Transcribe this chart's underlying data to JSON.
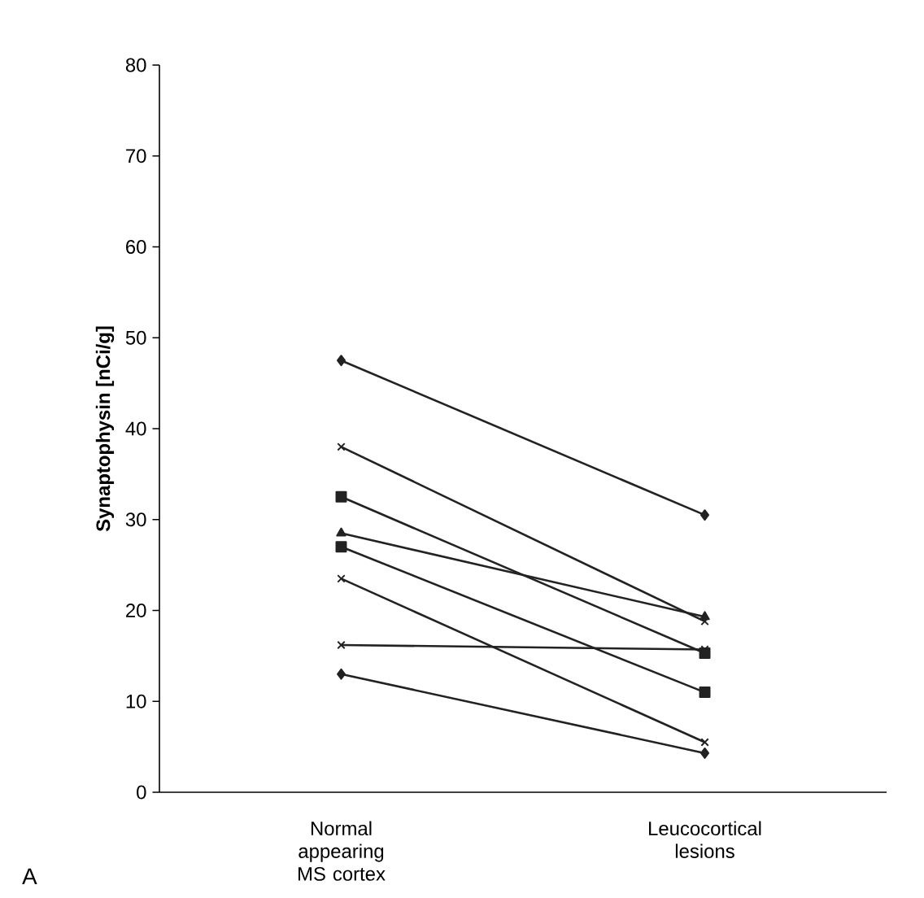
{
  "chart_data": {
    "type": "line",
    "ylabel": "Synaptophysin [nCi/g]",
    "categories": [
      "Normal appearing MS cortex",
      "Leucocortical lesions"
    ],
    "ylim": [
      0,
      80
    ],
    "yticks": [
      0,
      10,
      20,
      30,
      40,
      50,
      60,
      70,
      80
    ],
    "grid": false,
    "line_style": "solid",
    "series": [
      {
        "color": "#222222",
        "marker": "diamond",
        "values": [
          47.5,
          30.5
        ]
      },
      {
        "color": "#222222",
        "marker": "cross",
        "values": [
          38,
          18.8
        ]
      },
      {
        "color": "#222222",
        "marker": "square",
        "values": [
          32.5,
          15.3
        ]
      },
      {
        "color": "#222222",
        "marker": "triangle",
        "values": [
          28.5,
          19.3
        ]
      },
      {
        "color": "#222222",
        "marker": "square",
        "values": [
          27,
          11
        ]
      },
      {
        "color": "#222222",
        "marker": "cross",
        "values": [
          23.5,
          5.5
        ]
      },
      {
        "color": "#222222",
        "marker": "cross",
        "values": [
          16.2,
          15.7
        ]
      },
      {
        "color": "#222222",
        "marker": "diamond",
        "values": [
          13,
          4.3
        ]
      }
    ],
    "annotations": [
      "A"
    ]
  }
}
